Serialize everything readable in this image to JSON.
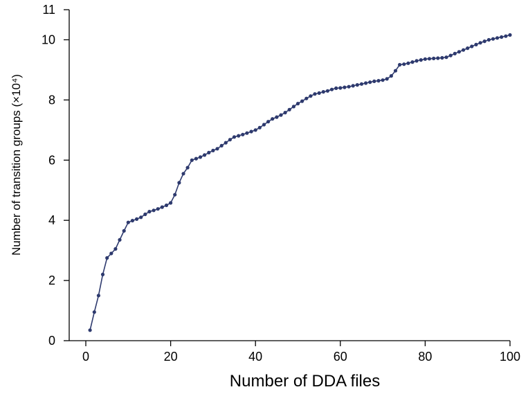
{
  "chart_data": {
    "type": "line",
    "title": "",
    "xlabel": "Number of DDA files",
    "ylabel": "Number of transition groups (×10⁴)",
    "xlim": [
      -2,
      100
    ],
    "ylim": [
      0,
      11
    ],
    "xticks": [
      0,
      20,
      40,
      60,
      80,
      100
    ],
    "yticks": [
      0,
      2,
      4,
      6,
      8,
      10,
      11
    ],
    "grid": false,
    "markers": true,
    "color": "#2e3a6e",
    "series": [
      {
        "x": [
          1,
          2,
          3,
          4,
          5,
          6,
          7,
          8,
          9,
          10,
          11,
          12,
          13,
          14,
          15,
          16,
          17,
          18,
          19,
          20,
          21,
          22,
          23,
          24,
          25,
          26,
          27,
          28,
          29,
          30,
          31,
          32,
          33,
          34,
          35,
          36,
          37,
          38,
          39,
          40,
          41,
          42,
          43,
          44,
          45,
          46,
          47,
          48,
          49,
          50,
          51,
          52,
          53,
          54,
          55,
          56,
          57,
          58,
          59,
          60,
          61,
          62,
          63,
          64,
          65,
          66,
          67,
          68,
          69,
          70,
          71,
          72,
          73,
          74,
          75,
          76,
          77,
          78,
          79,
          80,
          81,
          82,
          83,
          84,
          85,
          86,
          87,
          88,
          89,
          90,
          91,
          92,
          93,
          94,
          95,
          96,
          97,
          98,
          99,
          100
        ],
        "y": [
          0.35,
          0.95,
          1.5,
          2.2,
          2.75,
          2.9,
          3.05,
          3.35,
          3.65,
          3.93,
          3.99,
          4.04,
          4.1,
          4.2,
          4.29,
          4.33,
          4.38,
          4.44,
          4.5,
          4.58,
          4.85,
          5.25,
          5.55,
          5.75,
          6.0,
          6.05,
          6.1,
          6.17,
          6.25,
          6.32,
          6.38,
          6.48,
          6.58,
          6.68,
          6.77,
          6.81,
          6.85,
          6.9,
          6.95,
          7.0,
          7.08,
          7.18,
          7.28,
          7.37,
          7.43,
          7.5,
          7.58,
          7.68,
          7.78,
          7.88,
          7.96,
          8.05,
          8.13,
          8.2,
          8.23,
          8.27,
          8.3,
          8.35,
          8.39,
          8.4,
          8.42,
          8.44,
          8.47,
          8.5,
          8.53,
          8.56,
          8.59,
          8.62,
          8.64,
          8.66,
          8.7,
          8.8,
          8.97,
          9.17,
          9.19,
          9.22,
          9.26,
          9.3,
          9.33,
          9.36,
          9.37,
          9.38,
          9.39,
          9.4,
          9.42,
          9.48,
          9.54,
          9.6,
          9.66,
          9.72,
          9.78,
          9.84,
          9.9,
          9.95,
          10.0,
          10.03,
          10.06,
          10.09,
          10.12,
          10.16
        ]
      }
    ]
  }
}
